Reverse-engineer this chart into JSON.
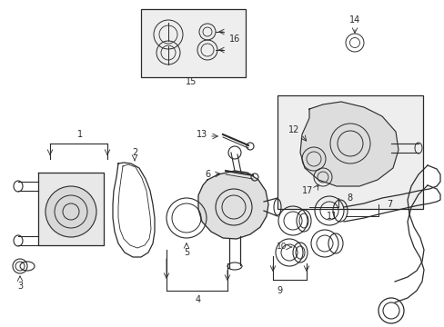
{
  "bg_color": "#ffffff",
  "line_color": "#2a2a2a",
  "box_bg": "#eeeeee",
  "figsize": [
    4.89,
    3.6
  ],
  "dpi": 100,
  "xlim": [
    0,
    489
  ],
  "ylim": [
    0,
    360
  ]
}
